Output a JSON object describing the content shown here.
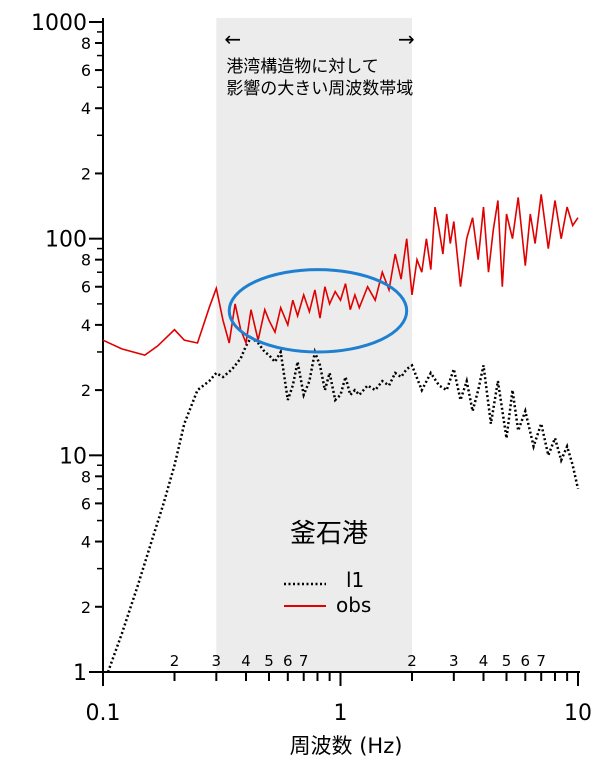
{
  "chart_data": {
    "type": "line",
    "xscale": "log",
    "yscale": "log",
    "xlim": [
      0.1,
      10
    ],
    "ylim": [
      1,
      1000
    ],
    "xlabel": "周波数 (Hz)",
    "ylabel": "",
    "title": "",
    "grid": false,
    "x_major_ticks": [
      {
        "value": 0.1,
        "label": "0.1"
      },
      {
        "value": 1,
        "label": "1"
      },
      {
        "value": 10,
        "label": "10"
      }
    ],
    "x_minor_ticks": [
      {
        "value": 0.2,
        "label": "2"
      },
      {
        "value": 0.3,
        "label": "3"
      },
      {
        "value": 0.4,
        "label": "4"
      },
      {
        "value": 0.5,
        "label": "5"
      },
      {
        "value": 0.6,
        "label": "6"
      },
      {
        "value": 0.7,
        "label": "7"
      },
      {
        "value": 2,
        "label": "2"
      },
      {
        "value": 3,
        "label": "3"
      },
      {
        "value": 4,
        "label": "4"
      },
      {
        "value": 5,
        "label": "5"
      },
      {
        "value": 6,
        "label": "6"
      },
      {
        "value": 7,
        "label": "7"
      }
    ],
    "y_major_ticks": [
      {
        "value": 1,
        "label": "1"
      },
      {
        "value": 10,
        "label": "10"
      },
      {
        "value": 100,
        "label": "100"
      },
      {
        "value": 1000,
        "label": "1000"
      }
    ],
    "y_minor_ticks": [
      {
        "value": 2,
        "label": "2"
      },
      {
        "value": 4,
        "label": "4"
      },
      {
        "value": 6,
        "label": "6"
      },
      {
        "value": 8,
        "label": "8"
      },
      {
        "value": 20,
        "label": "2"
      },
      {
        "value": 40,
        "label": "4"
      },
      {
        "value": 60,
        "label": "6"
      },
      {
        "value": 80,
        "label": "8"
      },
      {
        "value": 200,
        "label": "2"
      },
      {
        "value": 400,
        "label": "4"
      },
      {
        "value": 600,
        "label": "6"
      },
      {
        "value": 800,
        "label": "8"
      }
    ],
    "shaded_band": {
      "x_range": [
        0.3,
        2
      ],
      "color": "#ececec",
      "text_line1": "港湾構造物に対して",
      "text_line2": "影響の大きい周波数帯域"
    },
    "highlight_ellipse": {
      "center": [
        0.76,
        45
      ],
      "x_span": [
        0.34,
        1.9
      ],
      "y_span": [
        30,
        72
      ],
      "color": "#1f7fd0"
    },
    "legend": {
      "title": "釜石港",
      "position": "center-bottom",
      "entries": [
        {
          "label": "l1",
          "style": "dotted",
          "color": "#000000"
        },
        {
          "label": "obs",
          "style": "solid",
          "color": "#e00000"
        }
      ]
    },
    "series": [
      {
        "name": "obs",
        "color": "#e00000",
        "style": "solid",
        "x": [
          0.1,
          0.12,
          0.15,
          0.17,
          0.2,
          0.22,
          0.25,
          0.28,
          0.3,
          0.32,
          0.34,
          0.36,
          0.38,
          0.4,
          0.42,
          0.45,
          0.48,
          0.5,
          0.53,
          0.56,
          0.6,
          0.63,
          0.66,
          0.7,
          0.74,
          0.78,
          0.82,
          0.86,
          0.9,
          0.95,
          1.0,
          1.05,
          1.1,
          1.15,
          1.2,
          1.3,
          1.4,
          1.5,
          1.6,
          1.7,
          1.8,
          1.9,
          2.0,
          2.1,
          2.2,
          2.3,
          2.4,
          2.5,
          2.6,
          2.7,
          2.8,
          2.9,
          3.0,
          3.2,
          3.4,
          3.6,
          3.8,
          4.0,
          4.2,
          4.4,
          4.6,
          4.8,
          5.0,
          5.3,
          5.6,
          6.0,
          6.3,
          6.6,
          7.0,
          7.5,
          8.0,
          8.5,
          9.0,
          9.5,
          10.0
        ],
        "y": [
          34,
          31,
          29,
          32,
          38,
          34,
          33,
          48,
          59,
          42,
          33,
          50,
          38,
          33,
          47,
          34,
          47,
          42,
          37,
          48,
          40,
          52,
          44,
          55,
          46,
          58,
          43,
          60,
          50,
          57,
          52,
          62,
          47,
          55,
          48,
          60,
          52,
          70,
          58,
          85,
          65,
          100,
          55,
          80,
          70,
          100,
          72,
          140,
          110,
          85,
          130,
          95,
          120,
          60,
          100,
          125,
          80,
          140,
          70,
          110,
          150,
          60,
          130,
          100,
          155,
          75,
          130,
          95,
          160,
          90,
          150,
          100,
          140,
          115,
          125
        ]
      },
      {
        "name": "l1",
        "color": "#000000",
        "style": "dotted",
        "x": [
          0.105,
          0.12,
          0.14,
          0.16,
          0.18,
          0.2,
          0.22,
          0.25,
          0.28,
          0.3,
          0.32,
          0.35,
          0.38,
          0.4,
          0.42,
          0.45,
          0.48,
          0.5,
          0.53,
          0.56,
          0.6,
          0.63,
          0.66,
          0.7,
          0.74,
          0.78,
          0.82,
          0.86,
          0.9,
          0.95,
          1.0,
          1.05,
          1.1,
          1.15,
          1.2,
          1.3,
          1.4,
          1.5,
          1.6,
          1.7,
          1.8,
          1.9,
          2.0,
          2.2,
          2.4,
          2.6,
          2.8,
          3.0,
          3.2,
          3.4,
          3.6,
          3.8,
          4.0,
          4.3,
          4.6,
          5.0,
          5.3,
          5.6,
          6.0,
          6.5,
          7.0,
          7.5,
          8.0,
          8.5,
          9.0,
          9.5,
          10.0
        ],
        "y": [
          1,
          1.5,
          2.5,
          4,
          6,
          9,
          14,
          20,
          22,
          24,
          23,
          25,
          28,
          32,
          35,
          33,
          30,
          29,
          27,
          30,
          18,
          21,
          27,
          19,
          22,
          30,
          26,
          20,
          24,
          18,
          19,
          23,
          19,
          20,
          19,
          21,
          20,
          22,
          21,
          24,
          23,
          25,
          26,
          20,
          24,
          21,
          20,
          25,
          18,
          22,
          16,
          20,
          26,
          14,
          22,
          12,
          20,
          13,
          16,
          11,
          14,
          10,
          12,
          9.5,
          11,
          9,
          7
        ]
      }
    ]
  }
}
